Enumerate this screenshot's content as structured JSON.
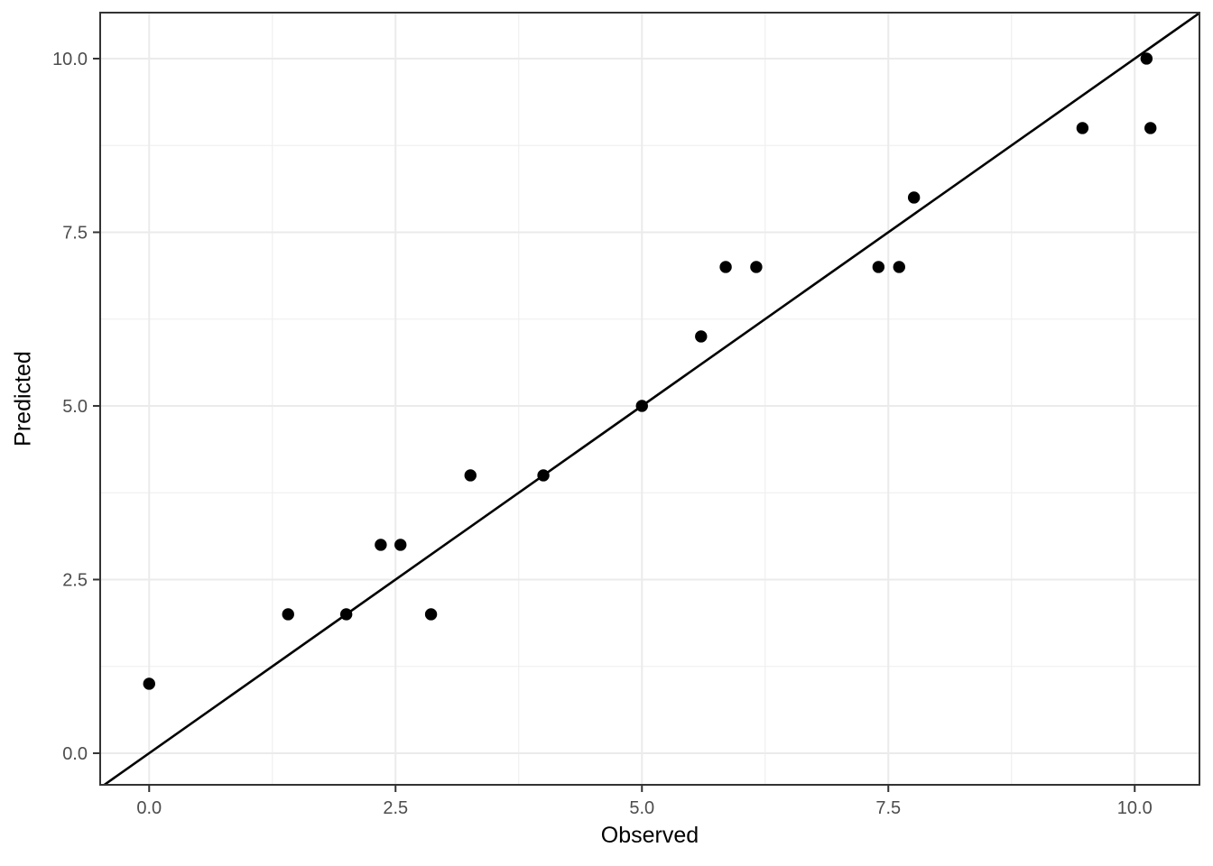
{
  "colors": {
    "background": "#FFFFFF",
    "panel_background": "#FFFFFF",
    "grid_major": "#EBEBEB",
    "grid_minor": "#F0F0F0",
    "panel_border": "#333333",
    "tick_mark": "#333333",
    "tick_label": "#4D4D4D",
    "axis_title": "#000000",
    "point": "#000000",
    "reference_line": "#000000"
  },
  "chart_data": {
    "type": "scatter",
    "title": "",
    "xlabel": "Observed",
    "ylabel": "Predicted",
    "xlim": [
      -0.497,
      10.657
    ],
    "ylim": [
      -0.455,
      10.662
    ],
    "x_major_ticks": [
      0.0,
      2.5,
      5.0,
      7.5,
      10.0
    ],
    "x_tick_labels": [
      "0.0",
      "2.5",
      "5.0",
      "7.5",
      "10.0"
    ],
    "y_major_ticks": [
      0.0,
      2.5,
      5.0,
      7.5,
      10.0
    ],
    "y_tick_labels": [
      "0.0",
      "2.5",
      "5.0",
      "7.5",
      "10.0"
    ],
    "x_minor_ticks": [
      1.25,
      3.75,
      6.25,
      8.75
    ],
    "y_minor_ticks": [
      1.25,
      3.75,
      6.25,
      8.75
    ],
    "grid": "major+minor",
    "legend": "none",
    "reference_line": {
      "kind": "identity",
      "slope": 1,
      "intercept": 0
    },
    "points": [
      {
        "x": 0.0,
        "y": 1
      },
      {
        "x": 1.41,
        "y": 2
      },
      {
        "x": 2.0,
        "y": 2
      },
      {
        "x": 2.35,
        "y": 3
      },
      {
        "x": 2.55,
        "y": 3
      },
      {
        "x": 2.86,
        "y": 2
      },
      {
        "x": 3.26,
        "y": 4
      },
      {
        "x": 4.0,
        "y": 4
      },
      {
        "x": 5.0,
        "y": 5
      },
      {
        "x": 5.6,
        "y": 6
      },
      {
        "x": 5.85,
        "y": 7
      },
      {
        "x": 6.16,
        "y": 7
      },
      {
        "x": 7.4,
        "y": 7
      },
      {
        "x": 7.61,
        "y": 7
      },
      {
        "x": 7.76,
        "y": 8
      },
      {
        "x": 9.47,
        "y": 9
      },
      {
        "x": 10.12,
        "y": 10
      },
      {
        "x": 10.16,
        "y": 9
      }
    ]
  }
}
